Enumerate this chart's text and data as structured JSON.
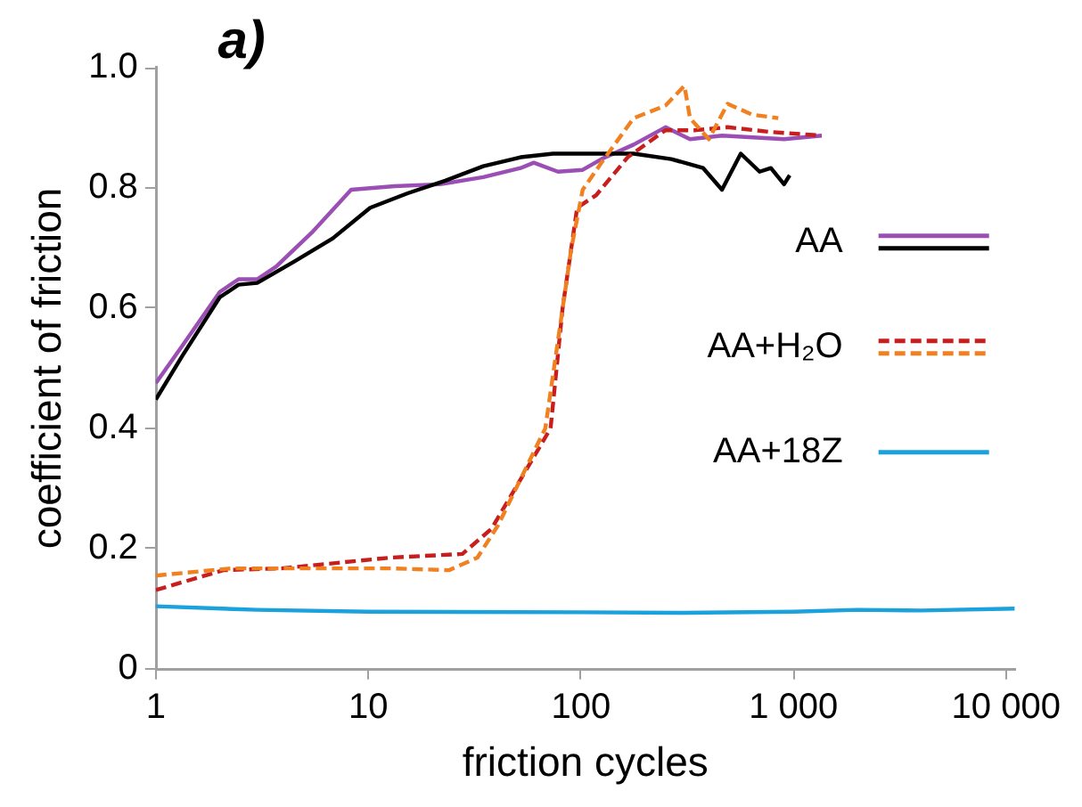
{
  "chart_data": {
    "type": "line",
    "title": "a)",
    "xlabel": "friction cycles",
    "ylabel": "coefficient of friction",
    "log": "x",
    "xlim": [
      1,
      11000
    ],
    "xticks": [
      1,
      10,
      100,
      {
        "value": 1000,
        "label": "1 000"
      },
      {
        "value": 10000,
        "label": "10 000"
      }
    ],
    "ylim": [
      0,
      1
    ],
    "yticks": [
      0,
      0.2,
      0.4,
      0.6,
      0.8,
      {
        "value": 1,
        "label": "1.0"
      }
    ],
    "legend": "right",
    "marker": "none",
    "series": [
      {
        "name": "AA",
        "color": "#9b4fb5",
        "line_style": "solid",
        "x": [
          1,
          1.33,
          2,
          2.45,
          3,
          3.68,
          5.5,
          8.3,
          13.3,
          21.7,
          34.7,
          52,
          60,
          78,
          102,
          125,
          177,
          250,
          326,
          461,
          903,
          1358
        ],
        "values": [
          0.475,
          0.537,
          0.627,
          0.648,
          0.648,
          0.669,
          0.728,
          0.797,
          0.803,
          0.806,
          0.818,
          0.833,
          0.842,
          0.827,
          0.83,
          0.848,
          0.872,
          0.901,
          0.881,
          0.887,
          0.881,
          0.887
        ]
      },
      {
        "color": "#000000",
        "line_style": "solid",
        "x": [
          1,
          1.33,
          2,
          2.45,
          3,
          4.5,
          6.8,
          10.2,
          15.3,
          23,
          34.7,
          52,
          74,
          177,
          266,
          376,
          461,
          565,
          693,
          783,
          903,
          960
        ],
        "values": [
          0.448,
          0.52,
          0.618,
          0.639,
          0.642,
          0.678,
          0.716,
          0.767,
          0.791,
          0.812,
          0.836,
          0.851,
          0.857,
          0.857,
          0.848,
          0.833,
          0.797,
          0.857,
          0.827,
          0.833,
          0.806,
          0.821
        ]
      },
      {
        "name": "AA+H₂O",
        "color": "#c81e1e",
        "line_style": "dashed",
        "x": [
          1,
          2.08,
          3.9,
          12.8,
          27.7,
          38,
          72,
          82,
          96,
          118,
          166,
          250,
          347,
          490,
          783,
          1358
        ],
        "values": [
          0.131,
          0.164,
          0.167,
          0.185,
          0.191,
          0.233,
          0.4,
          0.6,
          0.767,
          0.788,
          0.851,
          0.896,
          0.896,
          0.901,
          0.893,
          0.887
        ]
      },
      {
        "color": "#f08020",
        "line_style": "dashed",
        "x": [
          1,
          2.26,
          5.8,
          12.8,
          24,
          32.6,
          40.8,
          68,
          90,
          102,
          125,
          177,
          250,
          307,
          326,
          400,
          490,
          638,
          849
        ],
        "values": [
          0.155,
          0.167,
          0.167,
          0.167,
          0.164,
          0.185,
          0.239,
          0.4,
          0.698,
          0.797,
          0.842,
          0.916,
          0.937,
          0.97,
          0.916,
          0.881,
          0.94,
          0.922,
          0.916
        ]
      },
      {
        "name": "AA+18Z",
        "color": "#1ba1dc",
        "line_style": "solid",
        "x": [
          1,
          3,
          10,
          100,
          300,
          1000,
          2000,
          4000,
          11000
        ],
        "values": [
          0.104,
          0.098,
          0.095,
          0.094,
          0.093,
          0.095,
          0.098,
          0.097,
          0.1
        ]
      }
    ]
  }
}
